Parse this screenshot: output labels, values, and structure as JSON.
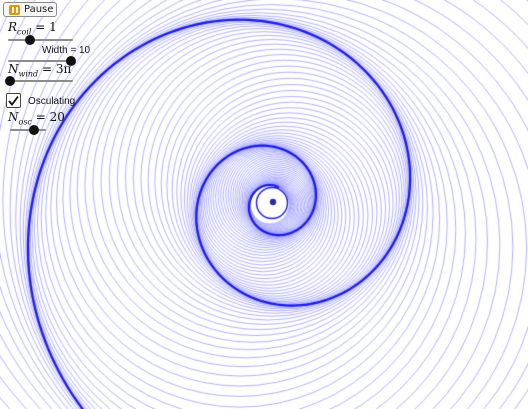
{
  "controls": {
    "pause_label": "Pause",
    "r_coil": {
      "symbol": "R",
      "sub": "coil",
      "value_text": "= 1",
      "value": 1,
      "min": 0,
      "max": 3
    },
    "width": {
      "label": "Width = 10",
      "value": 10,
      "min": 0,
      "max": 10
    },
    "n_wind": {
      "symbol": "N",
      "sub": "wind",
      "value_text": "= 3π",
      "value_fraction": 0.0
    },
    "osculating": {
      "label": "Osculating",
      "checked": true
    },
    "n_osc": {
      "symbol": "N",
      "sub": "osc",
      "value_text": "= 20",
      "value": 20,
      "min": 0,
      "max": 30
    }
  },
  "colors": {
    "spiral": "#1a1aee",
    "osc_circles": "#7b7bff",
    "center_dot": "#2a2aa8"
  }
}
